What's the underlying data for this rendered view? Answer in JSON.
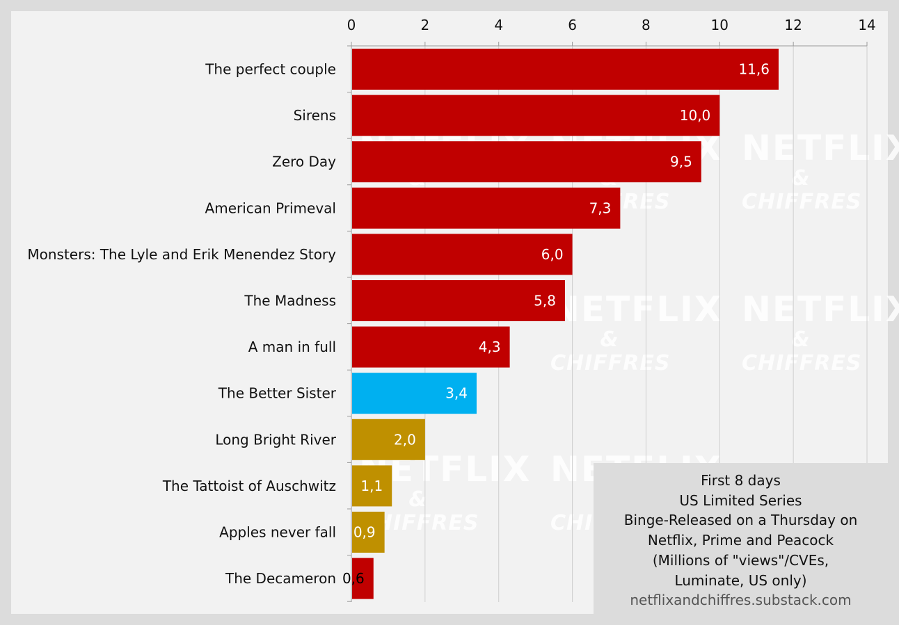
{
  "watermark": {
    "line1": "NETFLIX",
    "line2": "& CHIFFRES"
  },
  "note": {
    "lines": [
      "First 8 days",
      "US Limited Series",
      "Binge-Released on a Thursday on",
      "Netflix, Prime and Peacock",
      "(Millions of \"views\"/CVEs,",
      "Luminate, US only)"
    ],
    "source": "netflixandchiffres.substack.com"
  },
  "colors": {
    "netflix": "#c00000",
    "prime": "#00b0f0",
    "peacock": "#bf9000",
    "background": "#f2f2f2",
    "outer": "#dcdcdc",
    "grid": "#cfcfcf"
  },
  "chart_data": {
    "type": "bar",
    "orientation": "horizontal",
    "categories": [
      "The perfect couple",
      "Sirens",
      "Zero Day",
      "American Primeval",
      "Monsters: The Lyle and Erik Menendez Story",
      "The Madness",
      "A man in full",
      "The Better Sister",
      "Long Bright River",
      "The Tattoist of Auschwitz",
      "Apples never fall",
      "The Decameron"
    ],
    "values": [
      11.6,
      10.0,
      9.5,
      7.3,
      6.0,
      5.8,
      4.3,
      3.4,
      2.0,
      1.1,
      0.9,
      0.6
    ],
    "data_labels": [
      "11,6",
      "10,0",
      "9,5",
      "7,3",
      "6,0",
      "5,8",
      "4,3",
      "3,4",
      "2,0",
      "1,1",
      "0,9",
      "0,6"
    ],
    "bar_colors": [
      "#c00000",
      "#c00000",
      "#c00000",
      "#c00000",
      "#c00000",
      "#c00000",
      "#c00000",
      "#00b0f0",
      "#bf9000",
      "#bf9000",
      "#bf9000",
      "#c00000"
    ],
    "label_colors": [
      "#ffffff",
      "#ffffff",
      "#ffffff",
      "#ffffff",
      "#ffffff",
      "#ffffff",
      "#ffffff",
      "#ffffff",
      "#ffffff",
      "#ffffff",
      "#ffffff",
      "#000000"
    ],
    "xlim": [
      0,
      14
    ],
    "xticks": [
      0,
      2,
      4,
      6,
      8,
      10,
      12,
      14
    ],
    "x_axis_position": "top",
    "grid": true
  }
}
